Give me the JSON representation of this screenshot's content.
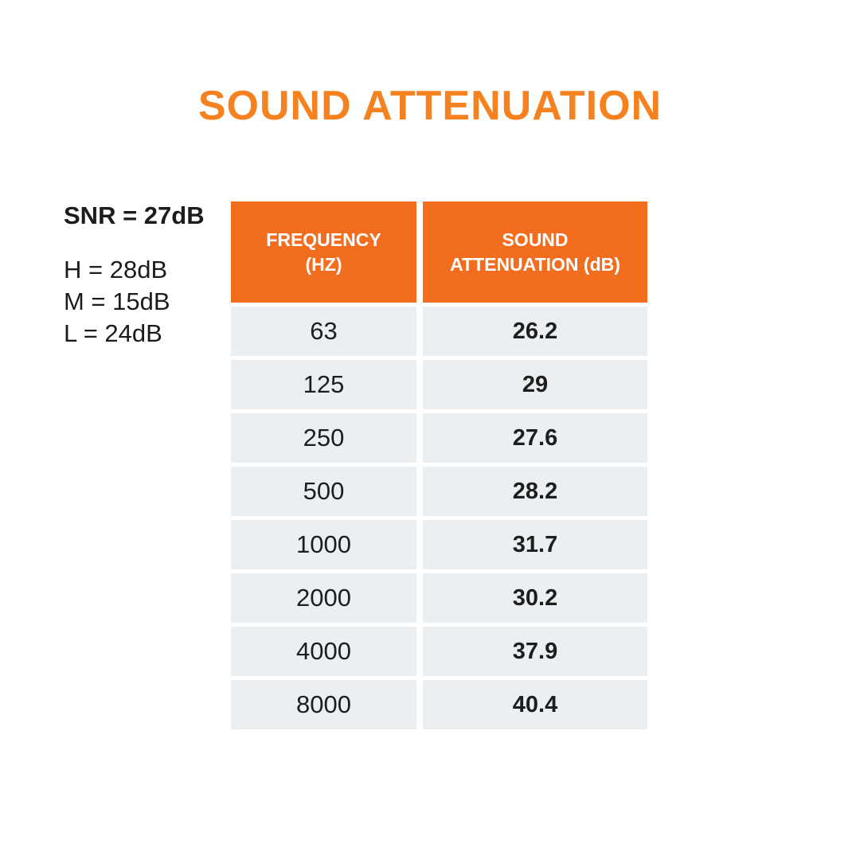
{
  "page": {
    "background": "#FFFFFF"
  },
  "header": {
    "title": "SOUND ATTENUATION",
    "title_color": "#F5811F"
  },
  "side_panel": {
    "snr": "SNR = 27dB",
    "values": [
      {
        "label": "H = 28dB"
      },
      {
        "label": "M = 15dB"
      },
      {
        "label": "L = 24dB"
      }
    ]
  },
  "table": {
    "accent_color": "#F36D1E",
    "row_color": "#ECEFF1",
    "columns": [
      {
        "label": "FREQUENCY (HZ)"
      },
      {
        "label": "SOUND ATTENUATION (dB)"
      }
    ],
    "rows": [
      {
        "freq": "63",
        "att": "26.2"
      },
      {
        "freq": "125",
        "att": "29"
      },
      {
        "freq": "250",
        "att": "27.6"
      },
      {
        "freq": "500",
        "att": "28.2"
      },
      {
        "freq": "1000",
        "att": "31.7"
      },
      {
        "freq": "2000",
        "att": "30.2"
      },
      {
        "freq": "4000",
        "att": "37.9"
      },
      {
        "freq": "8000",
        "att": "40.4"
      }
    ]
  },
  "chart_data": {
    "type": "table",
    "title": "SOUND ATTENUATION",
    "columns": [
      "FREQUENCY (HZ)",
      "SOUND ATTENUATION (dB)"
    ],
    "frequencies_hz": [
      63,
      125,
      250,
      500,
      1000,
      2000,
      4000,
      8000
    ],
    "attenuation_db": [
      26.2,
      29,
      27.6,
      28.2,
      31.7,
      30.2,
      37.9,
      40.4
    ],
    "snr_db": 27,
    "h_db": 28,
    "m_db": 15,
    "l_db": 24
  }
}
